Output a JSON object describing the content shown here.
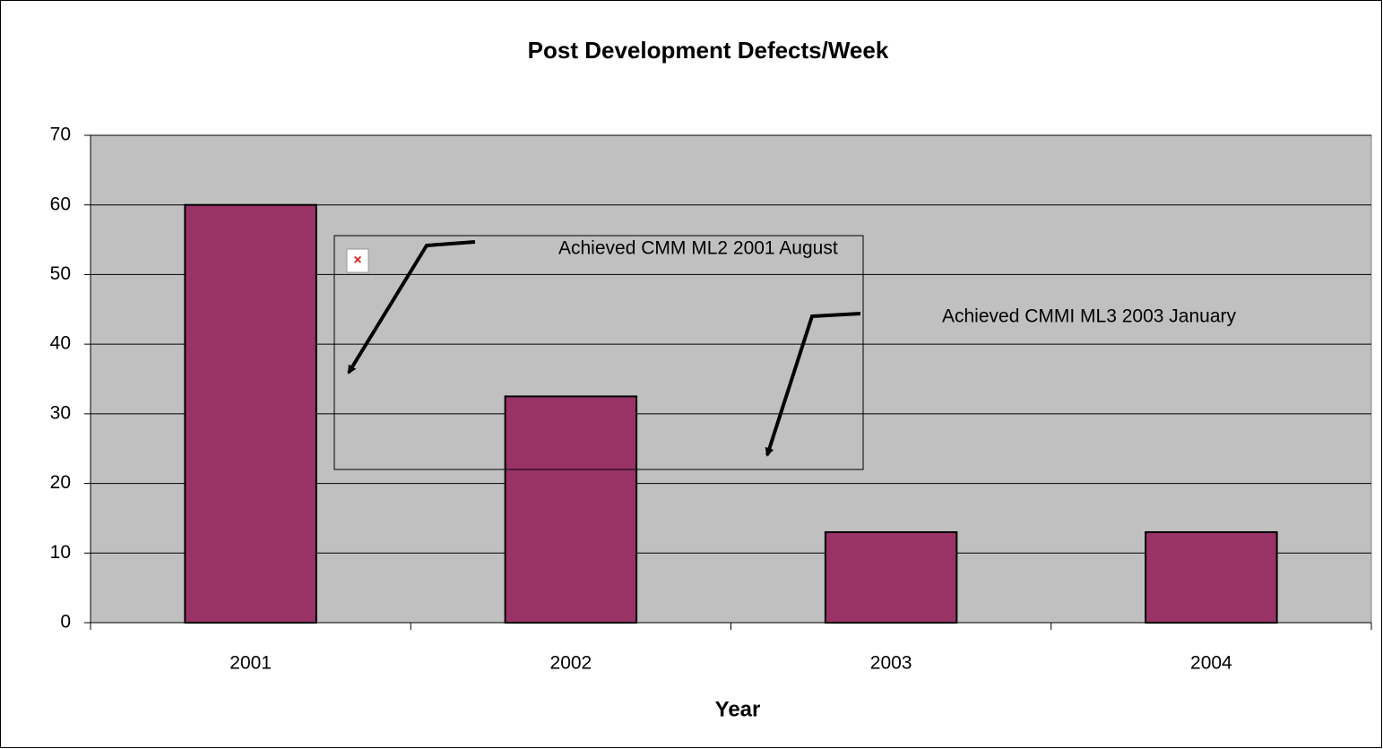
{
  "chart_data": {
    "type": "bar",
    "title": "Post Development Defects/Week",
    "x_label": "Year",
    "categories": [
      "2001",
      "2002",
      "2003",
      "2004"
    ],
    "values": [
      60,
      32.5,
      13,
      13
    ],
    "color": "#993366",
    "ylim": [
      0,
      70
    ],
    "yticks": [
      0,
      10,
      20,
      30,
      40,
      50,
      60,
      70
    ],
    "grid": true,
    "annotations": [
      "Achieved CMM ML2 2001 August",
      "Achieved CMMI ML3 2003 January"
    ]
  }
}
